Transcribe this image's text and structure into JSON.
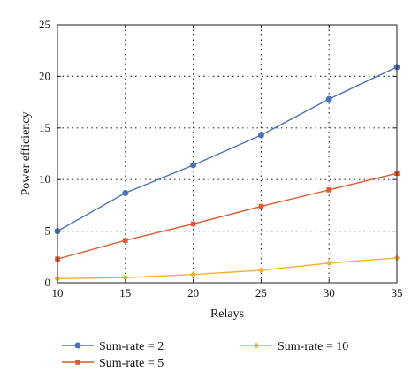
{
  "chart_data": {
    "type": "line",
    "title": "",
    "xlabel": "Relays",
    "ylabel": "Power efficiency",
    "x": [
      10,
      15,
      20,
      25,
      30,
      35
    ],
    "xlim": [
      10,
      35
    ],
    "ylim": [
      0,
      25
    ],
    "xticks": [
      10,
      15,
      20,
      25,
      30,
      35
    ],
    "yticks": [
      0,
      5,
      10,
      15,
      20,
      25
    ],
    "grid": true,
    "legend_position": "bottom",
    "series": [
      {
        "name": "Sum-rate = 2",
        "color": "#4a72b8",
        "marker": "circle",
        "values": [
          5.0,
          8.7,
          11.4,
          14.3,
          17.8,
          20.9
        ]
      },
      {
        "name": "Sum-rate = 5",
        "color": "#e2582e",
        "marker": "square",
        "values": [
          2.3,
          4.1,
          5.7,
          7.4,
          9.0,
          10.6
        ]
      },
      {
        "name": "Sum-rate = 10",
        "color": "#f2b12d",
        "marker": "diamond",
        "values": [
          0.4,
          0.5,
          0.8,
          1.2,
          1.9,
          2.4
        ]
      }
    ]
  }
}
